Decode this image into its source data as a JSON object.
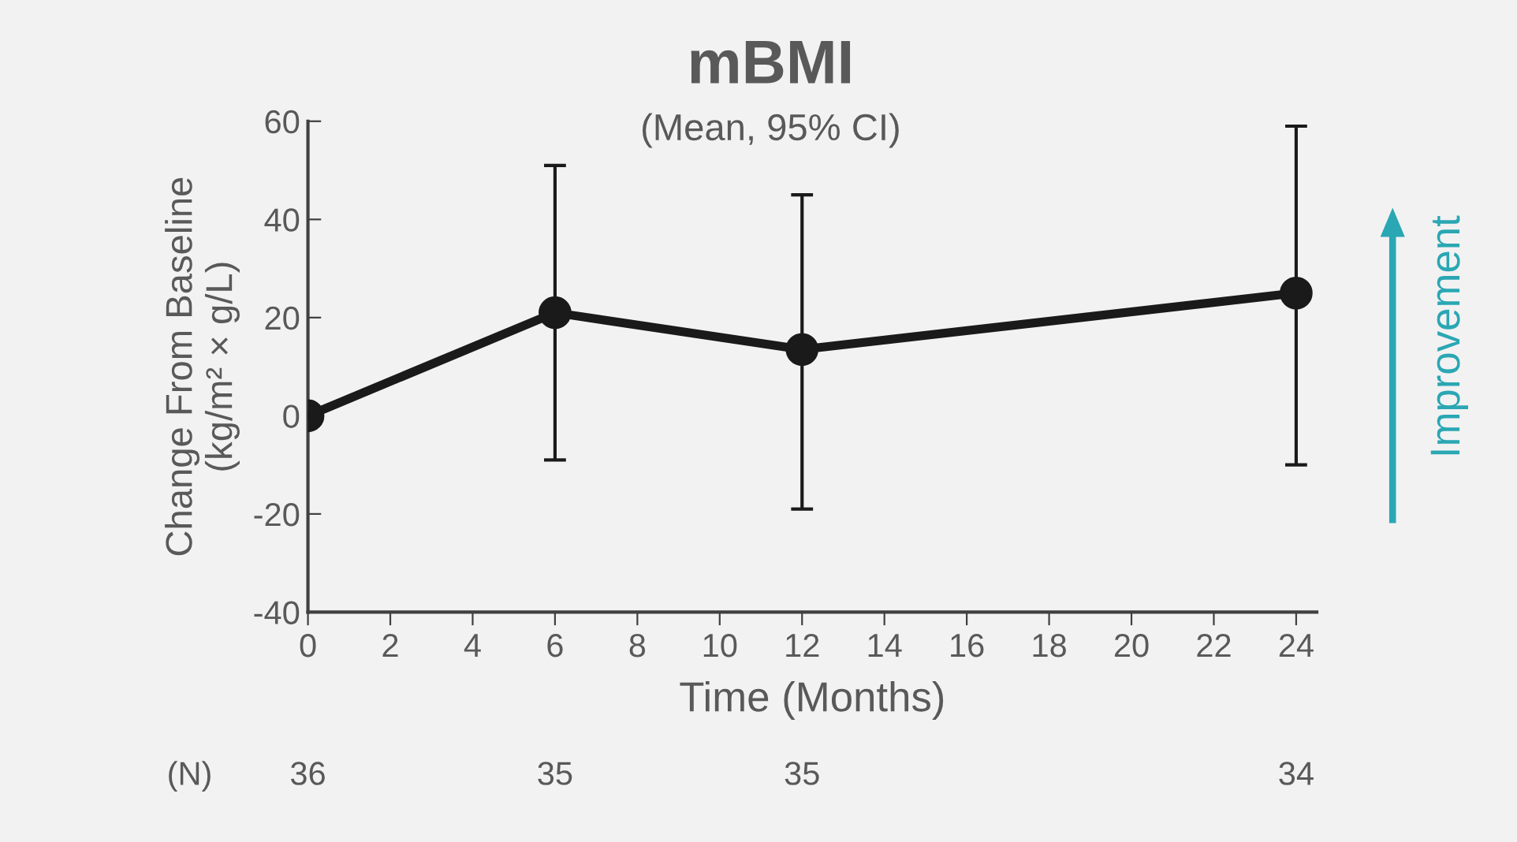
{
  "chart_data": {
    "type": "line",
    "title": "mBMI",
    "subtitle": "(Mean, 95% CI)",
    "xlabel": "Time (Months)",
    "ylabel": "Change From Baseline\n(kg/m² × g/L)",
    "x": [
      0,
      6,
      12,
      24
    ],
    "series": [
      {
        "color": "#1a1a1a",
        "values": [
          0,
          21,
          13.5,
          25
        ],
        "errors": [
          null,
          [
            -9,
            51
          ],
          [
            -19,
            45
          ],
          [
            -10,
            59
          ]
        ]
      }
    ],
    "xlim": [
      0,
      24.5
    ],
    "xticks": [
      0,
      2,
      4,
      6,
      8,
      10,
      12,
      14,
      16,
      18,
      20,
      22,
      24
    ],
    "ylim": [
      -40,
      60
    ],
    "yticks": [
      -40,
      -20,
      0,
      20,
      40,
      60
    ],
    "grid": false,
    "legend": false,
    "marker": "circle",
    "line_style": "solid",
    "annotations": [
      "(N)",
      "36",
      "35",
      "35",
      "34",
      "Improvement"
    ]
  }
}
